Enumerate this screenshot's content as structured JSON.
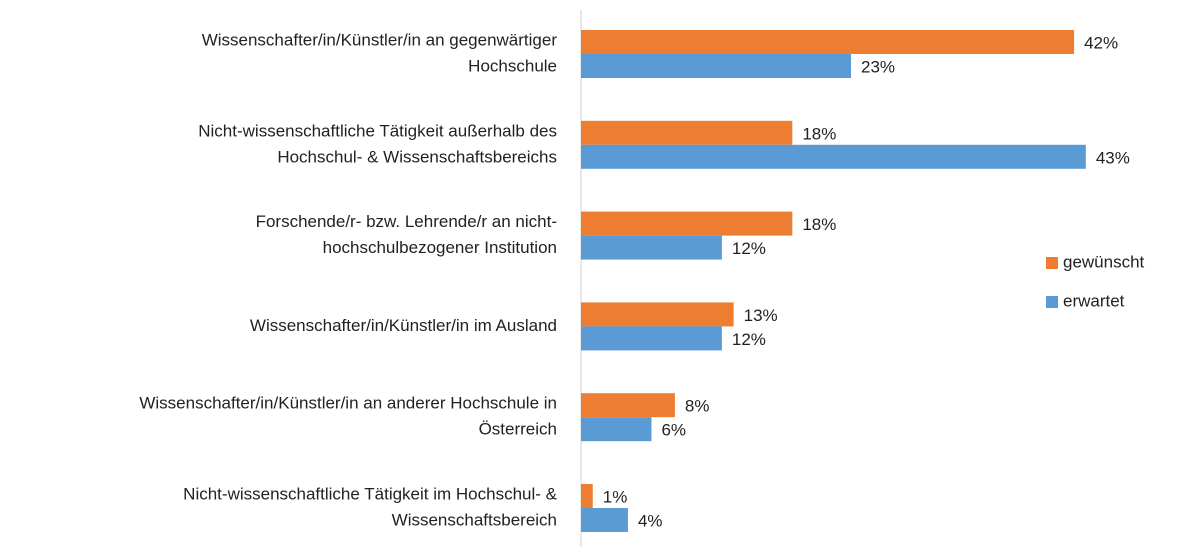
{
  "chart_data": {
    "type": "bar",
    "orientation": "horizontal",
    "categories": [
      [
        "Wissenschafter/in/Künstler/in an gegenwärtiger",
        "Hochschule"
      ],
      [
        "Nicht-wissenschaftliche Tätigkeit außerhalb des",
        "Hochschul- & Wissenschaftsbereichs"
      ],
      [
        "Forschende/r- bzw. Lehrende/r an nicht-",
        "hochschulbezogener Institution"
      ],
      [
        "Wissenschafter/in/Künstler/in im Ausland"
      ],
      [
        "Wissenschafter/in/Künstler/in an anderer Hochschule in",
        "Österreich"
      ],
      [
        "Nicht-wissenschaftliche Tätigkeit im Hochschul- &",
        "Wissenschaftsbereich"
      ]
    ],
    "series": [
      {
        "name": "gewünscht",
        "color": "#ed7d31",
        "values": [
          42,
          18,
          18,
          13,
          8,
          1
        ],
        "value_labels": [
          "42%",
          "18%",
          "18%",
          "13%",
          "8%",
          "1%"
        ]
      },
      {
        "name": "erwartet",
        "color": "#5b9bd5",
        "values": [
          23,
          43,
          12,
          12,
          6,
          4
        ],
        "value_labels": [
          "23%",
          "43%",
          "12%",
          "12%",
          "6%",
          "4%"
        ]
      }
    ],
    "legend": "right"
  }
}
